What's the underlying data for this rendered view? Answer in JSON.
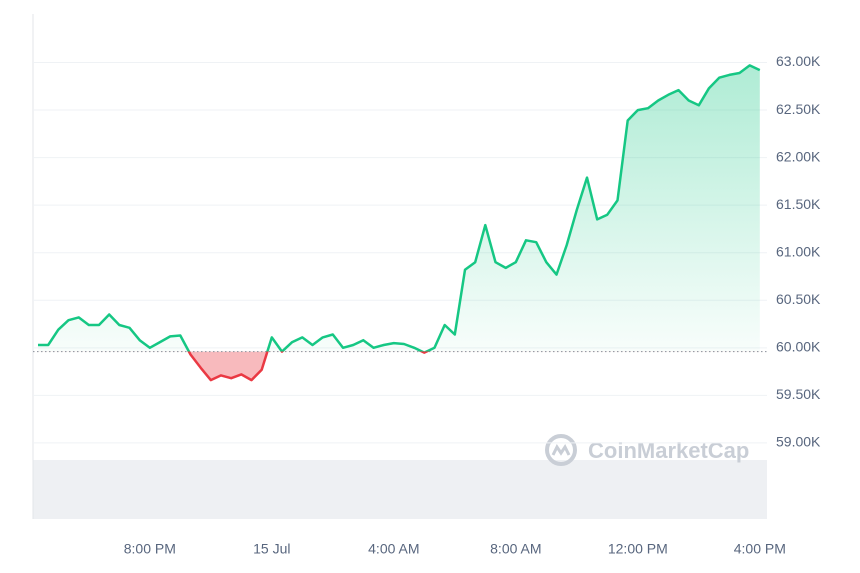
{
  "chart_data": {
    "type": "line",
    "watermark": "CoinMarketCap",
    "categories": [
      null,
      null,
      null,
      null,
      null,
      null,
      null,
      null,
      null,
      null,
      null,
      "8:00 PM",
      null,
      null,
      null,
      null,
      null,
      null,
      null,
      null,
      null,
      null,
      null,
      "15 Jul",
      null,
      null,
      null,
      null,
      null,
      null,
      null,
      null,
      null,
      null,
      null,
      "4:00 AM",
      null,
      null,
      null,
      null,
      null,
      null,
      null,
      null,
      null,
      null,
      null,
      "8:00 AM",
      null,
      null,
      null,
      null,
      null,
      null,
      null,
      null,
      null,
      null,
      null,
      "12:00 PM",
      null,
      null,
      null,
      null,
      null,
      null,
      null,
      null,
      null,
      null,
      null,
      "4:00 PM"
    ],
    "values": [
      60030,
      60030,
      60190,
      60290,
      60320,
      60240,
      60240,
      60350,
      60240,
      60210,
      60080,
      60000,
      60060,
      60120,
      60130,
      59930,
      59790,
      59660,
      59710,
      59680,
      59720,
      59660,
      59770,
      60110,
      59960,
      60060,
      60110,
      60030,
      60110,
      60140,
      60000,
      60030,
      60080,
      60000,
      60030,
      60050,
      60040,
      60000,
      59950,
      60000,
      60240,
      60140,
      60820,
      60900,
      61290,
      60900,
      60840,
      60900,
      61130,
      61110,
      60900,
      60770,
      61080,
      61450,
      61790,
      61350,
      61400,
      61550,
      62390,
      62500,
      62520,
      62600,
      62660,
      62710,
      62600,
      62550,
      62730,
      62840,
      62870,
      62890,
      62970,
      62920
    ],
    "baseline": 59960,
    "up_color": "#16c784",
    "down_color": "#ea3943",
    "ylim": [
      58200,
      63510
    ],
    "yticks": [
      {
        "value": 59000,
        "label": "59.00K"
      },
      {
        "value": 59500,
        "label": "59.50K"
      },
      {
        "value": 60000,
        "label": "60.00K"
      },
      {
        "value": 60500,
        "label": "60.50K"
      },
      {
        "value": 61000,
        "label": "61.00K"
      },
      {
        "value": 61500,
        "label": "61.50K"
      },
      {
        "value": 62000,
        "label": "62.00K"
      },
      {
        "value": 62500,
        "label": "62.50K"
      },
      {
        "value": 63000,
        "label": "63.00K"
      }
    ],
    "grid": true
  }
}
